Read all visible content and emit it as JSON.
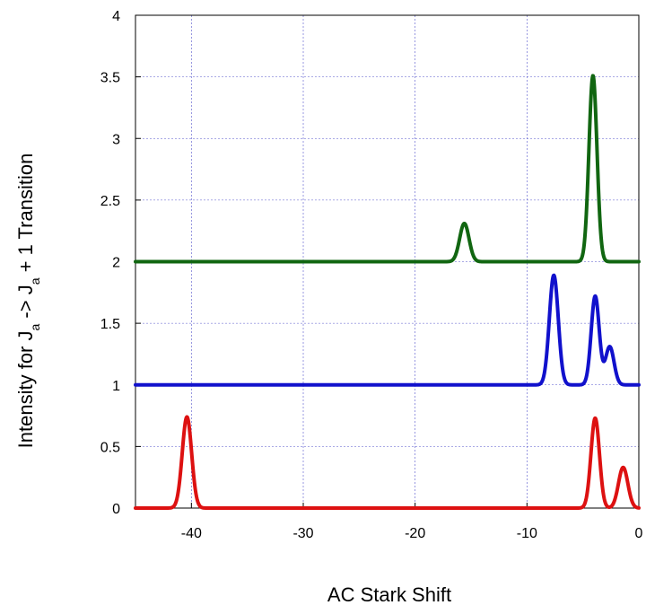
{
  "chart_data": {
    "type": "line",
    "title": "",
    "xlabel": "AC Stark Shift",
    "ylabel": {
      "text1": "Intensity for J",
      "sub1": "a",
      "text2": " -> J",
      "sub2": "a",
      "text3": " + 1 Transition"
    },
    "xlim": [
      -45,
      0
    ],
    "ylim": [
      0,
      4
    ],
    "xticks": [
      -40,
      -30,
      -20,
      -10,
      0
    ],
    "xtick_labels": [
      "-40",
      "-30",
      "-20",
      "-10",
      "0"
    ],
    "yticks": [
      0,
      0.5,
      1,
      1.5,
      2,
      2.5,
      3,
      3.5,
      4
    ],
    "ytick_labels": [
      "0",
      "0.5",
      "1",
      "1.5",
      "2",
      "2.5",
      "3",
      "3.5",
      "4"
    ],
    "grid": true,
    "legend": "none",
    "series": [
      {
        "color": "#dd1111",
        "baseline": 0,
        "peaks": [
          {
            "x": -40.4,
            "height": 0.74,
            "width": 0.42
          },
          {
            "x": -3.9,
            "height": 0.73,
            "width": 0.38
          },
          {
            "x": -1.4,
            "height": 0.33,
            "width": 0.42
          }
        ]
      },
      {
        "color": "#1111cc",
        "baseline": 1,
        "peaks": [
          {
            "x": -7.6,
            "height": 0.89,
            "width": 0.4
          },
          {
            "x": -3.9,
            "height": 0.72,
            "width": 0.36
          },
          {
            "x": -2.6,
            "height": 0.31,
            "width": 0.38
          }
        ]
      },
      {
        "color": "#116611",
        "baseline": 2,
        "peaks": [
          {
            "x": -15.6,
            "height": 0.31,
            "width": 0.42
          },
          {
            "x": -4.1,
            "height": 1.51,
            "width": 0.36
          }
        ]
      }
    ]
  }
}
